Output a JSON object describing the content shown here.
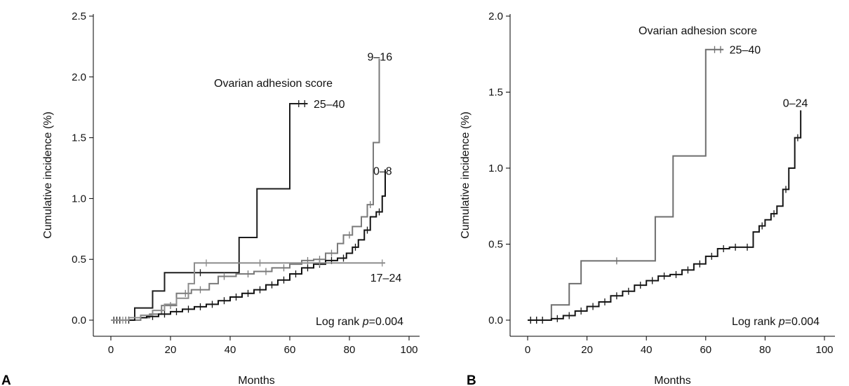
{
  "chart_data": [
    {
      "panel_label": "A",
      "type": "line",
      "xlabel": "Months",
      "ylabel": "Cumulative incidence (%)",
      "xlim": [
        0,
        100
      ],
      "ylim": [
        0,
        2.5
      ],
      "xticks": [
        0,
        20,
        40,
        60,
        80,
        100
      ],
      "yticks": [
        "0.0",
        "0.5",
        "1.0",
        "1.5",
        "2.0",
        "2.5"
      ],
      "grid": false,
      "annotation_title": "Ovarian adhesion score",
      "annotation_stat_prefix": "Log rank ",
      "annotation_stat_p": "p",
      "annotation_stat_value": "=0.004",
      "series": [
        {
          "name": "25–40",
          "color": "#1e1e1e",
          "x": [
            0,
            8,
            14,
            18,
            27,
            43,
            49,
            60,
            66
          ],
          "y": [
            0,
            0.1,
            0.24,
            0.39,
            0.39,
            0.68,
            1.08,
            1.78,
            1.78
          ],
          "censored_x": [
            1,
            3,
            5,
            30,
            63,
            65
          ],
          "label_at": [
            68,
            1.78
          ]
        },
        {
          "name": "9–16",
          "color": "#7a7a7a",
          "x": [
            0,
            10,
            13,
            17,
            22,
            27,
            33,
            36,
            42,
            48,
            54,
            60,
            64,
            68,
            72,
            76,
            78,
            81,
            84,
            86,
            88,
            90
          ],
          "y": [
            0,
            0.02,
            0.05,
            0.12,
            0.22,
            0.25,
            0.3,
            0.36,
            0.38,
            0.4,
            0.43,
            0.46,
            0.49,
            0.5,
            0.55,
            0.63,
            0.7,
            0.77,
            0.85,
            0.95,
            1.46,
            2.15
          ],
          "censored_x": [
            5,
            20,
            25,
            30,
            38,
            46,
            52,
            58,
            66,
            70,
            74,
            80,
            87
          ],
          "label_at": [
            86,
            2.17
          ]
        },
        {
          "name": "0–8",
          "color": "#121212",
          "x": [
            0,
            8,
            12,
            16,
            20,
            24,
            28,
            32,
            36,
            40,
            44,
            48,
            52,
            56,
            60,
            64,
            68,
            72,
            76,
            79,
            81,
            83,
            85,
            87,
            89,
            91,
            92
          ],
          "y": [
            0,
            0.02,
            0.03,
            0.05,
            0.07,
            0.09,
            0.11,
            0.13,
            0.16,
            0.19,
            0.22,
            0.25,
            0.29,
            0.33,
            0.38,
            0.43,
            0.46,
            0.49,
            0.51,
            0.55,
            0.6,
            0.66,
            0.74,
            0.85,
            0.89,
            1.02,
            1.24
          ],
          "censored_x": [
            2,
            6,
            14,
            18,
            22,
            26,
            30,
            34,
            38,
            42,
            46,
            50,
            54,
            58,
            62,
            66,
            70,
            74,
            78,
            82,
            86,
            90
          ],
          "label_at": [
            88,
            1.23
          ]
        },
        {
          "name": "17–24",
          "color": "#8c8c8c",
          "x": [
            0,
            6,
            10,
            14,
            18,
            22,
            26,
            28,
            92
          ],
          "y": [
            0,
            0.02,
            0.04,
            0.08,
            0.13,
            0.18,
            0.3,
            0.47,
            0.47
          ],
          "censored_x": [
            4,
            32,
            50,
            70,
            91
          ],
          "label_at": [
            87,
            0.35
          ]
        }
      ]
    },
    {
      "panel_label": "B",
      "type": "line",
      "xlabel": "Months",
      "ylabel": "Cumulative incidence (%)",
      "xlim": [
        0,
        100
      ],
      "ylim": [
        0,
        2.0
      ],
      "xticks": [
        0,
        20,
        40,
        60,
        80,
        100
      ],
      "yticks": [
        "0.0",
        "0.5",
        "1.0",
        "1.5",
        "2.0"
      ],
      "grid": false,
      "annotation_title": "Ovarian adhesion score",
      "annotation_stat_prefix": "Log rank ",
      "annotation_stat_p": "p",
      "annotation_stat_value": "=0.004",
      "series": [
        {
          "name": "25–40",
          "color": "#6e6e6e",
          "x": [
            0,
            8,
            14,
            18,
            43,
            49,
            60,
            66
          ],
          "y": [
            0,
            0.1,
            0.24,
            0.39,
            0.68,
            1.08,
            1.78,
            1.78
          ],
          "censored_x": [
            1,
            3,
            5,
            30,
            63,
            65
          ],
          "label_at": [
            68,
            1.78
          ]
        },
        {
          "name": "0–24",
          "color": "#151515",
          "x": [
            0,
            8,
            12,
            16,
            20,
            24,
            28,
            32,
            36,
            40,
            44,
            48,
            52,
            56,
            60,
            64,
            68,
            72,
            76,
            78,
            80,
            82,
            84,
            86,
            88,
            90,
            92
          ],
          "y": [
            0,
            0.01,
            0.03,
            0.06,
            0.09,
            0.12,
            0.16,
            0.19,
            0.23,
            0.26,
            0.29,
            0.3,
            0.33,
            0.37,
            0.42,
            0.47,
            0.48,
            0.48,
            0.58,
            0.62,
            0.66,
            0.7,
            0.75,
            0.86,
            1.0,
            1.2,
            1.38
          ],
          "censored_x": [
            1,
            3,
            5,
            10,
            14,
            18,
            22,
            26,
            30,
            34,
            38,
            42,
            46,
            50,
            54,
            58,
            62,
            66,
            70,
            74,
            79,
            83,
            87,
            91
          ],
          "label_at": [
            86,
            1.43
          ]
        }
      ]
    }
  ]
}
